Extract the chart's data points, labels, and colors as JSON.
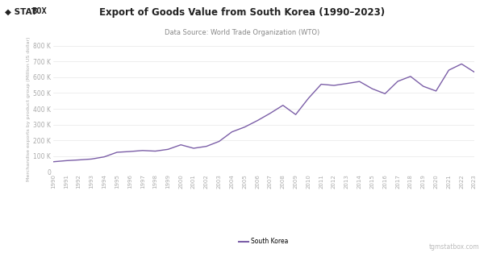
{
  "title": "Export of Goods Value from South Korea (1990–2023)",
  "subtitle": "Data Source: World Trade Organization (WTO)",
  "ylabel": "Merchandise exports by product group (Million US dollar)",
  "legend_label": "South Korea",
  "line_color": "#7b5ea7",
  "background_color": "#ffffff",
  "watermark": "tgmstatbox.com",
  "ylim": [
    0,
    800000
  ],
  "yticks": [
    0,
    100000,
    200000,
    300000,
    400000,
    500000,
    600000,
    700000,
    800000
  ],
  "ytick_labels": [
    "0",
    "100 K",
    "200 K",
    "300 K",
    "400 K",
    "500 K",
    "600 K",
    "700 K",
    "800 K"
  ],
  "years": [
    1990,
    1991,
    1992,
    1993,
    1994,
    1995,
    1996,
    1997,
    1998,
    1999,
    2000,
    2001,
    2002,
    2003,
    2004,
    2005,
    2006,
    2007,
    2008,
    2009,
    2010,
    2011,
    2012,
    2013,
    2014,
    2015,
    2016,
    2017,
    2018,
    2019,
    2020,
    2021,
    2022,
    2023
  ],
  "values": [
    65016,
    71870,
    76632,
    82236,
    96013,
    125058,
    129715,
    136164,
    132313,
    143685,
    172268,
    150439,
    162471,
    193817,
    253845,
    284419,
    325465,
    371489,
    422007,
    363534,
    466384,
    555214,
    547870,
    559632,
    572665,
    526757,
    495426,
    573694,
    604860,
    542233,
    512498,
    644400,
    683585,
    632320
  ]
}
